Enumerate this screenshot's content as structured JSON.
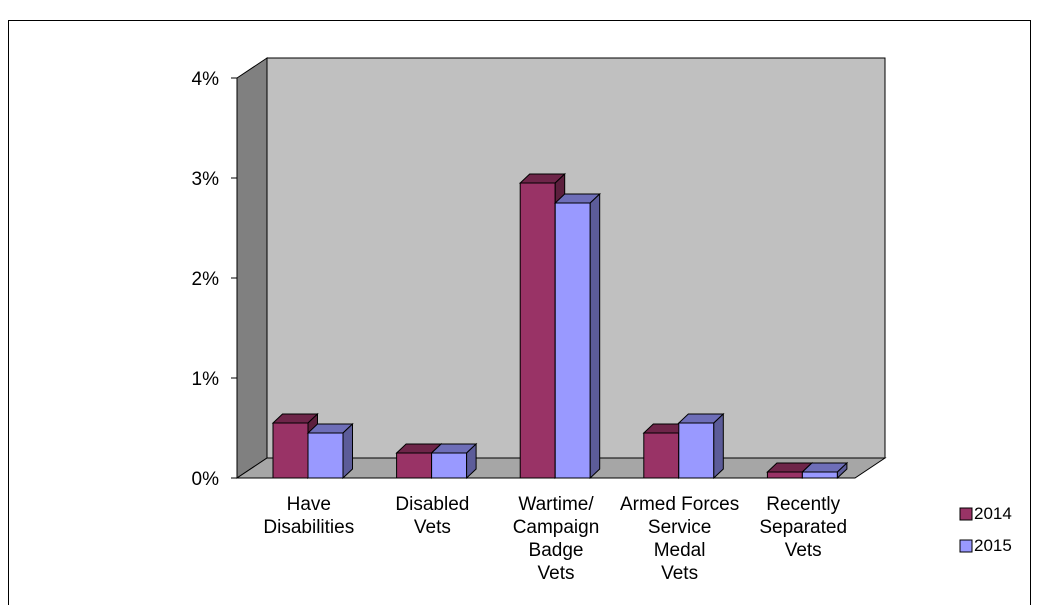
{
  "chart_data": {
    "type": "bar",
    "title": "",
    "xlabel": "",
    "ylabel": "",
    "ylim": [
      0,
      4
    ],
    "y_tick_labels": [
      "0%",
      "1%",
      "2%",
      "3%",
      "4%"
    ],
    "categories": [
      [
        "Have",
        "Disabilities"
      ],
      [
        "Disabled",
        "Vets"
      ],
      [
        "Wartime/",
        "Campaign",
        "Badge",
        "Vets"
      ],
      [
        "Armed Forces",
        "Service",
        "Medal",
        "Vets"
      ],
      [
        "Recently",
        "Separated",
        "Vets"
      ]
    ],
    "series": [
      {
        "name": "2014",
        "values": [
          0.55,
          0.25,
          2.95,
          0.45,
          0.06
        ]
      },
      {
        "name": "2015",
        "values": [
          0.45,
          0.25,
          2.75,
          0.55,
          0.06
        ]
      }
    ],
    "legend_position": "bottom-right",
    "grid": false,
    "style": "3d-clustered-column",
    "colors": {
      "2014": "#993366",
      "2015": "#9999ff",
      "wall": "#c0c0c0",
      "side_wall": "#808080",
      "floor": "#a6a6a6"
    }
  }
}
